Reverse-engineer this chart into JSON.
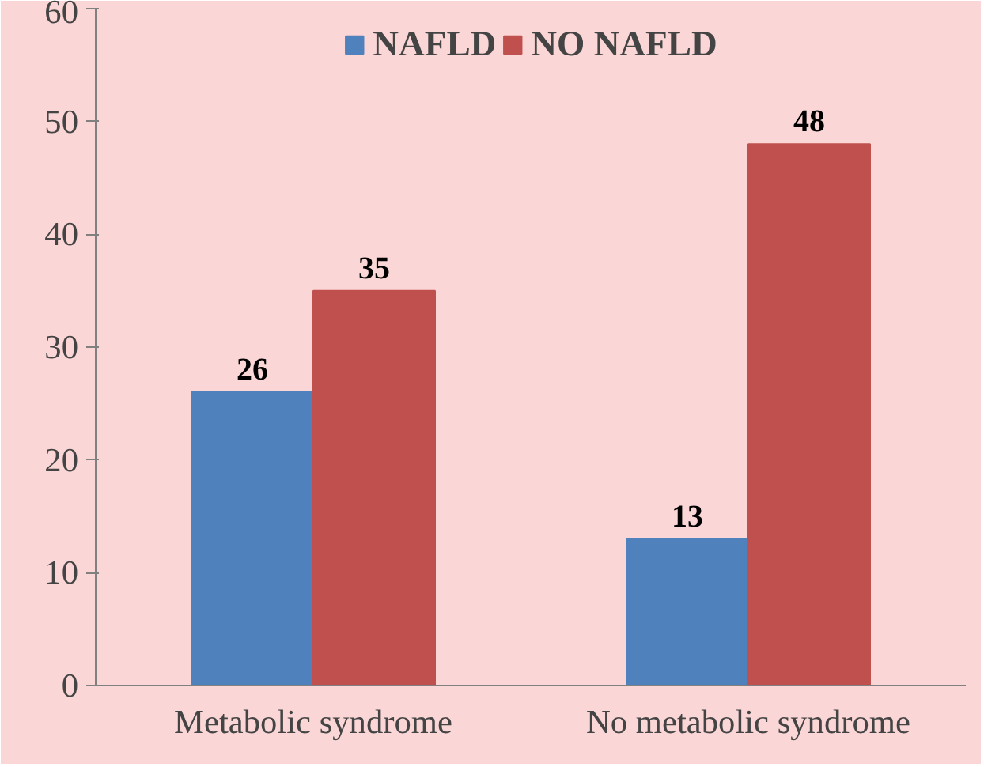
{
  "chart_data": {
    "type": "bar",
    "categories": [
      "Metabolic syndrome",
      "No metabolic syndrome"
    ],
    "series": [
      {
        "name": "NAFLD",
        "color": "#4f81bd",
        "values": [
          26,
          13
        ]
      },
      {
        "name": "NO NAFLD",
        "color": "#c0504d",
        "values": [
          35,
          48
        ]
      }
    ],
    "ylim": [
      0,
      60
    ],
    "yticks": [
      0,
      10,
      20,
      30,
      40,
      50,
      60
    ],
    "grid": false,
    "legend": "top",
    "data_labels": true
  }
}
